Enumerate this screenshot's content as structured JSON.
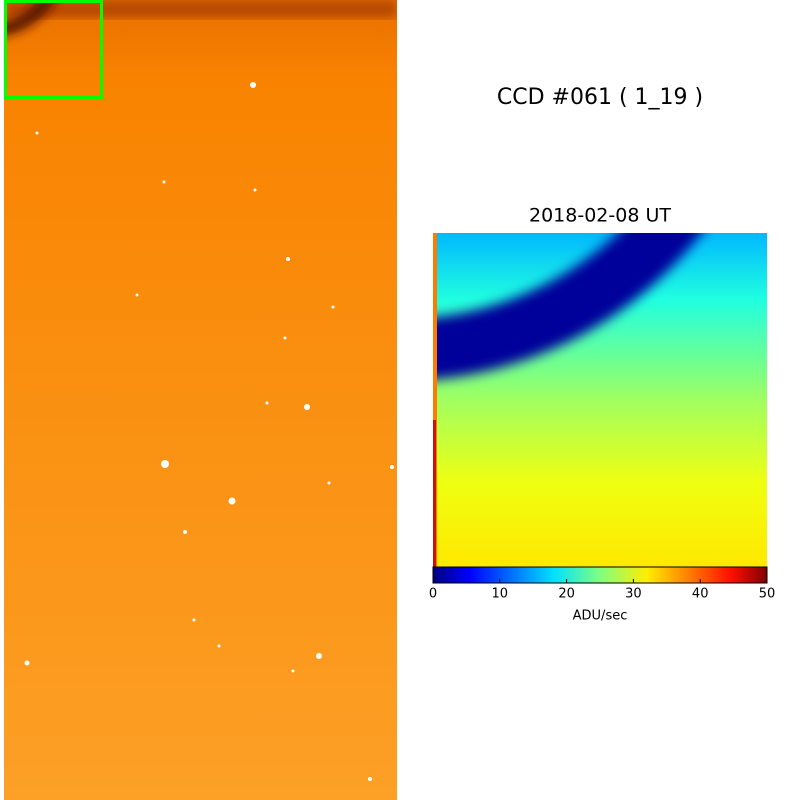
{
  "title": "CCD #061 ( 1_19 )",
  "panel": {
    "title": "2018-02-08 UT"
  },
  "colorbar": {
    "lim": [
      0,
      50
    ],
    "ticks": [
      0,
      10,
      20,
      30,
      40,
      50
    ],
    "label": "ADU/sec"
  }
}
